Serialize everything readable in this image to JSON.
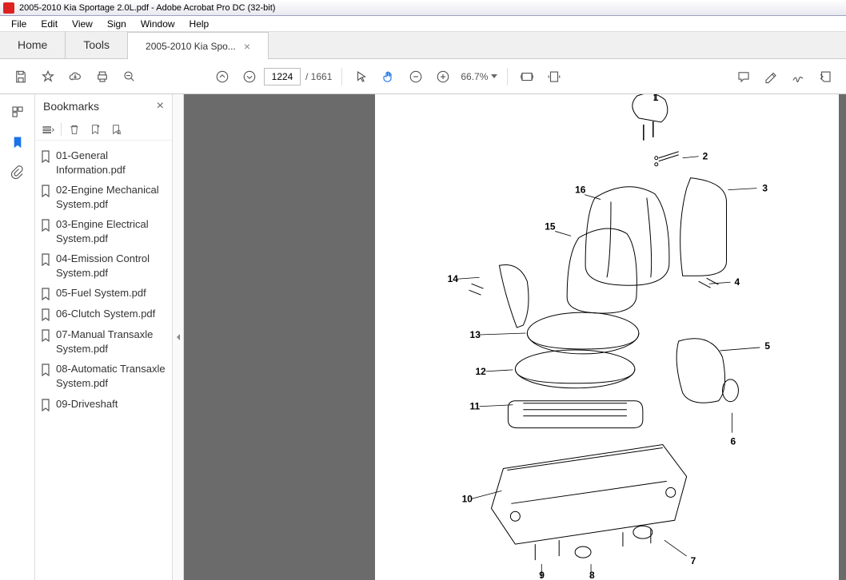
{
  "window": {
    "title": "2005-2010 Kia Sportage 2.0L.pdf - Adobe Acrobat Pro DC (32-bit)"
  },
  "menu": {
    "items": [
      "File",
      "Edit",
      "View",
      "Sign",
      "Window",
      "Help"
    ]
  },
  "tabs": {
    "home": "Home",
    "tools": "Tools",
    "doc": "2005-2010 Kia Spo..."
  },
  "toolbar": {
    "page_current": "1224",
    "page_total": "/ 1661",
    "zoom": "66.7%"
  },
  "bookmarks": {
    "title": "Bookmarks",
    "items": [
      "01-General Information.pdf",
      "02-Engine Mechanical System.pdf",
      "03-Engine Electrical System.pdf",
      "04-Emission Control System.pdf",
      "05-Fuel System.pdf",
      "06-Clutch System.pdf",
      "07-Manual Transaxle System.pdf",
      "08-Automatic Transaxle System.pdf",
      "09-Driveshaft"
    ]
  },
  "diagram": {
    "callouts": [
      "1",
      "2",
      "3",
      "4",
      "5",
      "6",
      "7",
      "8",
      "9",
      "10",
      "11",
      "12",
      "13",
      "14",
      "15",
      "16"
    ]
  }
}
